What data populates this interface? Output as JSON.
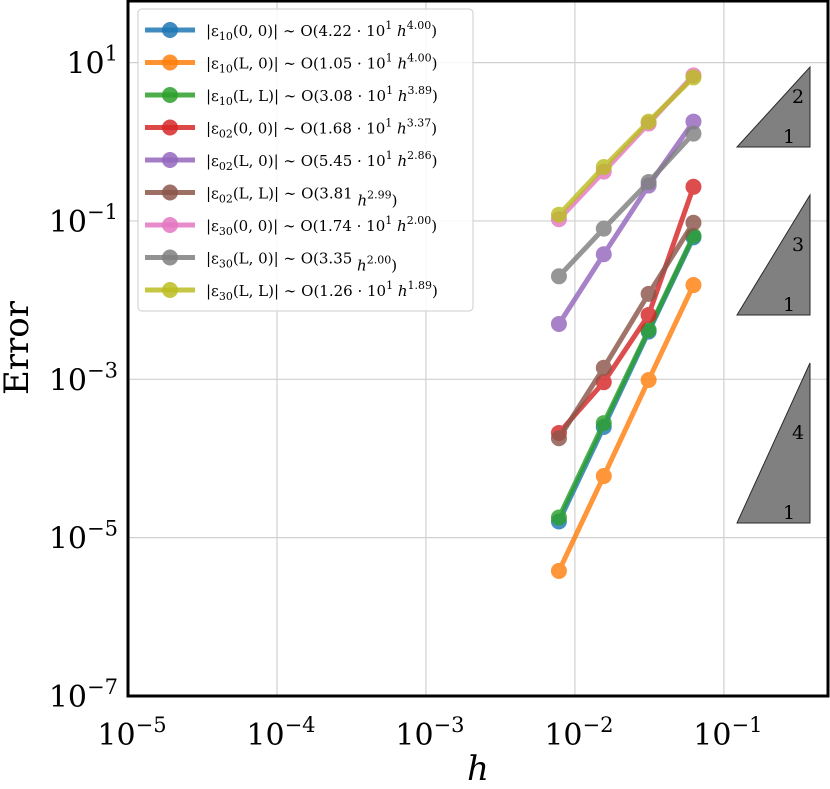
{
  "chart_data": {
    "type": "line",
    "xscale": "log",
    "yscale": "log",
    "xlim": [
      1e-05,
      0.5
    ],
    "ylim": [
      1e-07,
      60
    ],
    "xlabel": "h",
    "ylabel": "Error",
    "grid": true,
    "legend_position": "top-left",
    "x_ticks": [
      {
        "value": 1e-05,
        "base": "10",
        "exp": "−5"
      },
      {
        "value": 0.0001,
        "base": "10",
        "exp": "−4"
      },
      {
        "value": 0.001,
        "base": "10",
        "exp": "−3"
      },
      {
        "value": 0.01,
        "base": "10",
        "exp": "−2"
      },
      {
        "value": 0.1,
        "base": "10",
        "exp": "−1"
      }
    ],
    "y_ticks": [
      {
        "value": 1e-07,
        "base": "10",
        "exp": "−7"
      },
      {
        "value": 1e-05,
        "base": "10",
        "exp": "−5"
      },
      {
        "value": 0.001,
        "base": "10",
        "exp": "−3"
      },
      {
        "value": 0.1,
        "base": "10",
        "exp": "−1"
      },
      {
        "value": 10,
        "base": "10",
        "exp": "1"
      }
    ],
    "x": [
      0.0078125,
      0.015625,
      0.03125,
      0.0625
    ],
    "series": [
      {
        "name": "|ε₁₀(0,0)| ~ O(4.22·10¹ h^4.00)",
        "color": "#1f77b4",
        "values": [
          1.6e-05,
          0.00025,
          0.004,
          0.062
        ]
      },
      {
        "name": "|ε₁₀(L,0)| ~ O(1.05·10¹ h^4.00)",
        "color": "#ff7f0e",
        "values": [
          3.8e-06,
          6e-05,
          0.00098,
          0.0155
        ]
      },
      {
        "name": "|ε₁₀(L,L)| ~ O(3.08·10¹ h^3.89)",
        "color": "#2ca02c",
        "values": [
          1.8e-05,
          0.00028,
          0.0042,
          0.065
        ]
      },
      {
        "name": "|ε₀₂(0,0)| ~ O(1.68·10¹ h^3.37)",
        "color": "#d62728",
        "values": [
          0.00021,
          0.00092,
          0.0065,
          0.27
        ]
      },
      {
        "name": "|ε₀₂(L,0)| ~ O(5.45·10¹ h^2.86)",
        "color": "#9467bd",
        "values": [
          0.005,
          0.038,
          0.28,
          1.8
        ]
      },
      {
        "name": "|ε₀₂(L,L)| ~ O(3.81 h^2.99)",
        "color": "#8c564b",
        "values": [
          0.00018,
          0.0014,
          0.012,
          0.095
        ]
      },
      {
        "name": "|ε₃₀(0,0)| ~ O(1.74·10¹ h^2.00)",
        "color": "#e377c2",
        "values": [
          0.105,
          0.42,
          1.7,
          6.9
        ]
      },
      {
        "name": "|ε₃₀(L,0)| ~ O(3.35 h^2.00)",
        "color": "#7f7f7f",
        "values": [
          0.02,
          0.08,
          0.31,
          1.27
        ]
      },
      {
        "name": "|ε₃₀(L,L)| ~ O(1.26·10¹ h^1.89)",
        "color": "#bcbd22",
        "values": [
          0.12,
          0.48,
          1.8,
          6.5
        ]
      }
    ],
    "legend": [
      {
        "pre": "|ε",
        "sub": "10",
        "mid": "(0, 0)| ∼ O(4.22 · 10",
        "sup1": "1",
        "h": " h",
        "sup2": "4.00",
        "post": ")"
      },
      {
        "pre": "|ε",
        "sub": "10",
        "mid": "(L, 0)| ∼ O(1.05 · 10",
        "sup1": "1",
        "h": " h",
        "sup2": "4.00",
        "post": ")"
      },
      {
        "pre": "|ε",
        "sub": "10",
        "mid": "(L, L)| ∼ O(3.08 · 10",
        "sup1": "1",
        "h": " h",
        "sup2": "3.89",
        "post": ")"
      },
      {
        "pre": "|ε",
        "sub": "02",
        "mid": "(0, 0)| ∼ O(1.68 · 10",
        "sup1": "1",
        "h": " h",
        "sup2": "3.37",
        "post": ")"
      },
      {
        "pre": "|ε",
        "sub": "02",
        "mid": "(L, 0)| ∼ O(5.45 · 10",
        "sup1": "1",
        "h": " h",
        "sup2": "2.86",
        "post": ")"
      },
      {
        "pre": "|ε",
        "sub": "02",
        "mid": "(L, L)| ∼ O(3.81",
        "sup1": "",
        "h": " h",
        "sup2": "2.99",
        "post": ")"
      },
      {
        "pre": "|ε",
        "sub": "30",
        "mid": "(0, 0)| ∼ O(1.74 · 10",
        "sup1": "1",
        "h": " h",
        "sup2": "2.00",
        "post": ")"
      },
      {
        "pre": "|ε",
        "sub": "30",
        "mid": "(L, 0)| ∼ O(3.35",
        "sup1": "",
        "h": " h",
        "sup2": "2.00",
        "post": ")"
      },
      {
        "pre": "|ε",
        "sub": "30",
        "mid": "(L, L)| ∼ O(1.26 · 10",
        "sup1": "1",
        "h": " h",
        "sup2": "1.89",
        "post": ")"
      }
    ],
    "slope_triangles": [
      {
        "rise": "2",
        "run": "1"
      },
      {
        "rise": "3",
        "run": "1"
      },
      {
        "rise": "4",
        "run": "1"
      }
    ]
  }
}
